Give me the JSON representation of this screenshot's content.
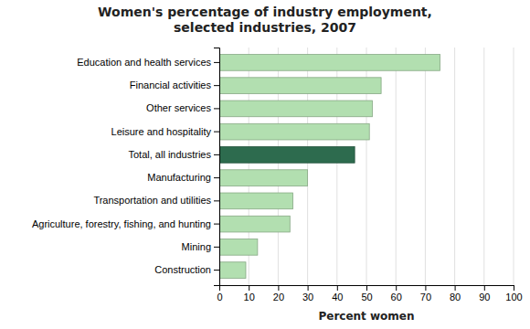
{
  "chart_data": {
    "type": "bar",
    "orientation": "horizontal",
    "title": "Women's percentage of industry employment,\nselected industries, 2007",
    "xlabel": "Percent women",
    "categories": [
      "Construction",
      "Mining",
      "Agriculture, forestry, fishing, and hunting",
      "Transportation and utilities",
      "Manufacturing",
      "Total, all industries",
      "Leisure and hospitality",
      "Other services",
      "Financial activities",
      "Education and health services"
    ],
    "values": [
      9,
      13,
      24,
      25,
      30,
      46,
      51,
      52,
      55,
      75
    ],
    "colors": [
      "#b2dfb0",
      "#b2dfb0",
      "#b2dfb0",
      "#b2dfb0",
      "#b2dfb0",
      "#2d6b4e",
      "#b2dfb0",
      "#b2dfb0",
      "#b2dfb0",
      "#b2dfb0"
    ],
    "xlim": [
      0,
      100
    ],
    "xticks": [
      0,
      10,
      20,
      30,
      40,
      50,
      60,
      70,
      80,
      90,
      100
    ],
    "grid": true
  }
}
